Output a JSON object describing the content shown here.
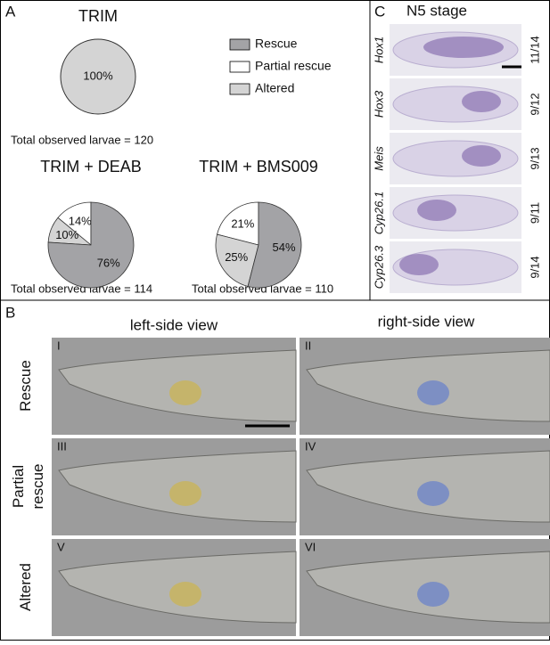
{
  "panel_a": {
    "label": "A",
    "legend": [
      {
        "name": "Rescue",
        "color": "#a3a3a6"
      },
      {
        "name": "Partial rescue",
        "color": "#ffffff"
      },
      {
        "name": "Altered",
        "color": "#d4d4d4"
      }
    ]
  },
  "chart_data": [
    {
      "type": "pie",
      "title": "TRIM",
      "values": [
        0,
        0,
        100
      ],
      "value_labels": [
        null,
        null,
        "100%"
      ],
      "footnote": "Total observed larvae = 120"
    },
    {
      "type": "pie",
      "title": "TRIM + DEAB",
      "values": [
        76,
        14,
        10
      ],
      "value_labels": [
        "76%",
        "14%",
        "10%"
      ],
      "footnote": "Total observed larvae = 114"
    },
    {
      "type": "pie",
      "title": "TRIM + BMS009",
      "values": [
        54,
        21,
        25
      ],
      "value_labels": [
        "54%",
        "21%",
        "25%"
      ],
      "footnote": "Total observed larvae = 110"
    }
  ],
  "panel_c": {
    "label": "C",
    "title": "N5 stage",
    "rows": [
      {
        "gene": "Hox1",
        "ratio": "11/14"
      },
      {
        "gene": "Hox3",
        "ratio": "9/12"
      },
      {
        "gene": "Meis",
        "ratio": "9/13"
      },
      {
        "gene": "Cyp26.1",
        "ratio": "9/11"
      },
      {
        "gene": "Cyp26.3",
        "ratio": "9/14"
      }
    ]
  },
  "panel_b": {
    "label": "B",
    "columns": [
      "left-side view",
      "right-side view"
    ],
    "rows": [
      {
        "lines": [
          "Rescue"
        ]
      },
      {
        "lines": [
          "Partial",
          "rescue"
        ]
      },
      {
        "lines": [
          "Altered"
        ]
      }
    ],
    "numerals": [
      "I",
      "II",
      "III",
      "IV",
      "V",
      "VI"
    ]
  }
}
